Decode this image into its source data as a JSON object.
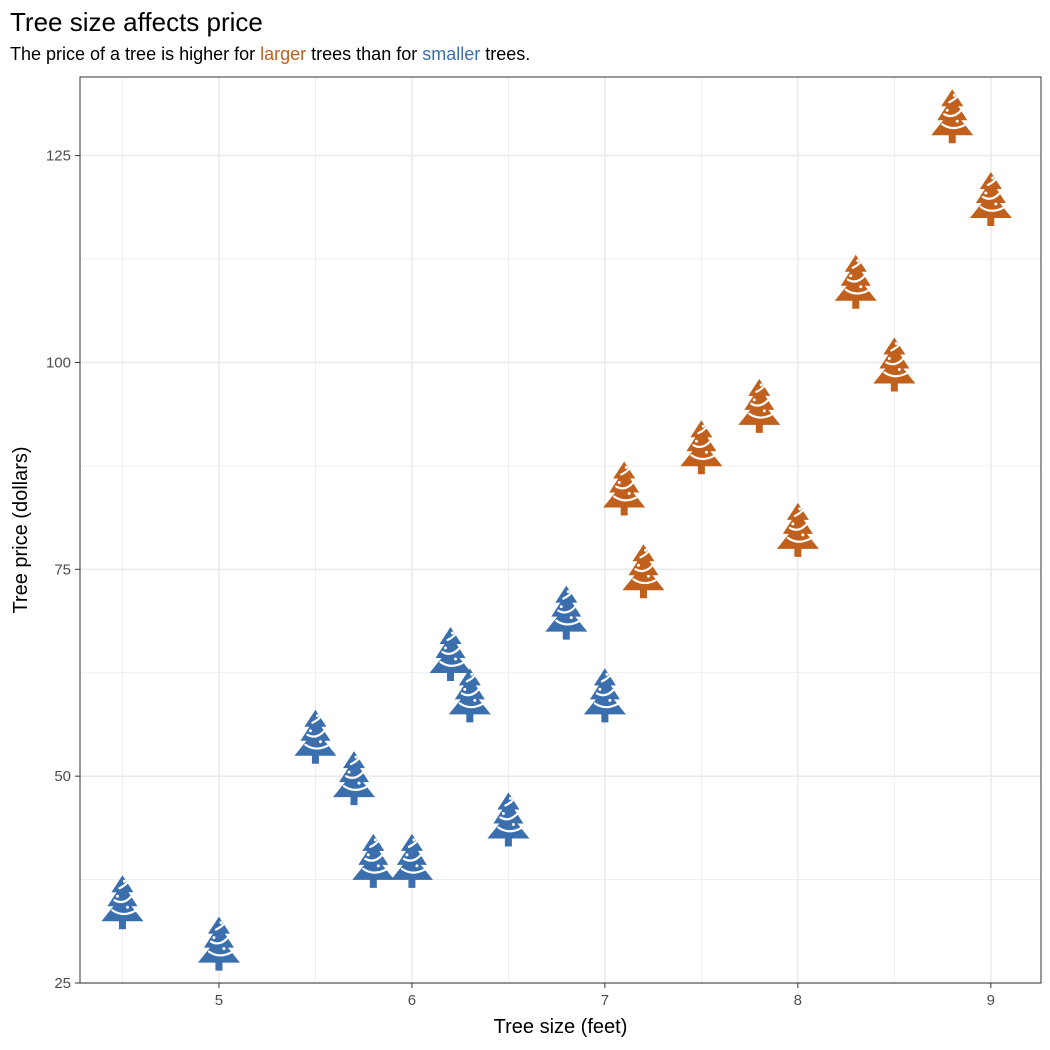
{
  "title": "Tree size affects price",
  "subtitle": {
    "part1": "The price of a tree is higher for ",
    "larger": "larger",
    "part2": " trees than for ",
    "smaller": "smaller",
    "part3": " trees."
  },
  "colors": {
    "larger": "#c0601c",
    "smaller": "#3a6ead",
    "gridline": "#ebebeb",
    "panel_border": "#333333"
  },
  "chart_data": {
    "type": "scatter",
    "marker": "tree-icon",
    "xlabel": "Tree size (feet)",
    "ylabel": "Tree price (dollars)",
    "xlim": [
      4.28,
      9.26
    ],
    "ylim": [
      25,
      134.5
    ],
    "xticks": [
      5,
      6,
      7,
      8,
      9
    ],
    "yticks": [
      25,
      50,
      75,
      100,
      125
    ],
    "grid": true,
    "series": [
      {
        "group": "smaller",
        "points": [
          {
            "x": 4.5,
            "y": 35
          },
          {
            "x": 5.0,
            "y": 30
          },
          {
            "x": 5.5,
            "y": 55
          },
          {
            "x": 5.7,
            "y": 50
          },
          {
            "x": 5.8,
            "y": 40
          },
          {
            "x": 6.0,
            "y": 40
          },
          {
            "x": 6.2,
            "y": 65
          },
          {
            "x": 6.3,
            "y": 60
          },
          {
            "x": 6.5,
            "y": 45
          },
          {
            "x": 6.8,
            "y": 70
          },
          {
            "x": 7.0,
            "y": 60
          }
        ]
      },
      {
        "group": "larger",
        "points": [
          {
            "x": 7.1,
            "y": 85
          },
          {
            "x": 7.2,
            "y": 75
          },
          {
            "x": 7.5,
            "y": 90
          },
          {
            "x": 7.8,
            "y": 95
          },
          {
            "x": 8.0,
            "y": 80
          },
          {
            "x": 8.3,
            "y": 110
          },
          {
            "x": 8.5,
            "y": 100
          },
          {
            "x": 8.8,
            "y": 130
          },
          {
            "x": 9.0,
            "y": 120
          }
        ]
      }
    ]
  }
}
